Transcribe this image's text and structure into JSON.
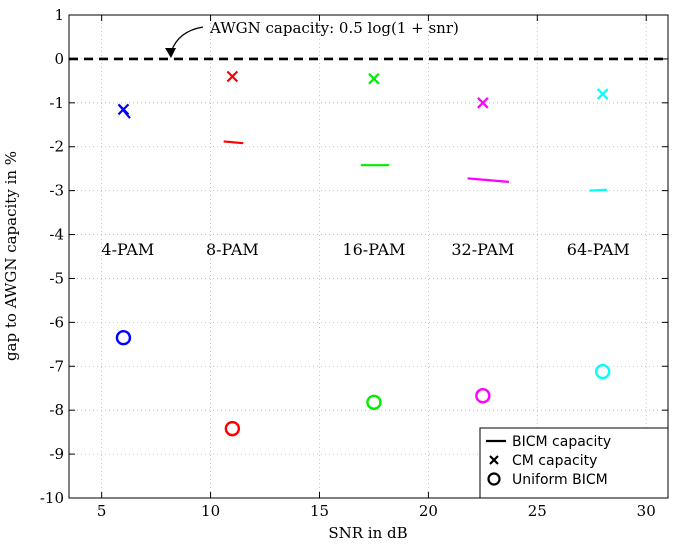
{
  "chart_data": {
    "type": "scatter",
    "title": "",
    "xlabel": "SNR in dB",
    "ylabel": "gap to AWGN capacity in %",
    "xlim": [
      3.5,
      31
    ],
    "ylim": [
      -10,
      1
    ],
    "xticks": [
      5,
      10,
      15,
      20,
      25,
      30
    ],
    "yticks": [
      1,
      0,
      -1,
      -2,
      -3,
      -4,
      -5,
      -6,
      -7,
      -8,
      -9,
      -10
    ],
    "grid": true,
    "legend_position": "bottom-right",
    "annotation": {
      "text": "AWGN capacity: 0.5 log(1 + snr)",
      "y": 0
    },
    "groups": [
      {
        "label": "4-PAM",
        "label_x": 6.2,
        "label_y": -4.35,
        "color": "#0000ff",
        "cm": {
          "x": 6.0,
          "y": -1.15
        },
        "bicm_segment": [
          [
            5.8,
            -1.05
          ],
          [
            6.3,
            -1.35
          ]
        ],
        "uniform": {
          "x": 6.0,
          "y": -6.35
        }
      },
      {
        "label": "8-PAM",
        "label_x": 11.0,
        "label_y": -4.35,
        "color": "#ff0000",
        "cm": {
          "x": 11.0,
          "y": -0.4
        },
        "bicm_segment": [
          [
            10.6,
            -1.88
          ],
          [
            11.5,
            -1.92
          ]
        ],
        "uniform": {
          "x": 11.0,
          "y": -8.42
        }
      },
      {
        "label": "16-PAM",
        "label_x": 17.5,
        "label_y": -4.35,
        "color": "#00ee00",
        "cm": {
          "x": 17.5,
          "y": -0.45
        },
        "bicm_segment": [
          [
            16.9,
            -2.42
          ],
          [
            18.2,
            -2.42
          ]
        ],
        "uniform": {
          "x": 17.5,
          "y": -7.82
        }
      },
      {
        "label": "32-PAM",
        "label_x": 22.5,
        "label_y": -4.35,
        "color": "#ff00ff",
        "cm": {
          "x": 22.5,
          "y": -1.0
        },
        "bicm_segment": [
          [
            21.8,
            -2.72
          ],
          [
            23.7,
            -2.8
          ]
        ],
        "uniform": {
          "x": 22.5,
          "y": -7.67
        }
      },
      {
        "label": "64-PAM",
        "label_x": 27.8,
        "label_y": -4.35,
        "color": "#00ffff",
        "cm": {
          "x": 28.0,
          "y": -0.8
        },
        "bicm_segment": [
          [
            27.4,
            -3.0
          ],
          [
            28.2,
            -2.98
          ]
        ],
        "uniform": {
          "x": 28.0,
          "y": -7.12
        }
      }
    ],
    "legend": [
      {
        "label": "BICM capacity",
        "marker": "line"
      },
      {
        "label": "CM capacity",
        "marker": "x"
      },
      {
        "label": "Uniform BICM",
        "marker": "o"
      }
    ]
  }
}
